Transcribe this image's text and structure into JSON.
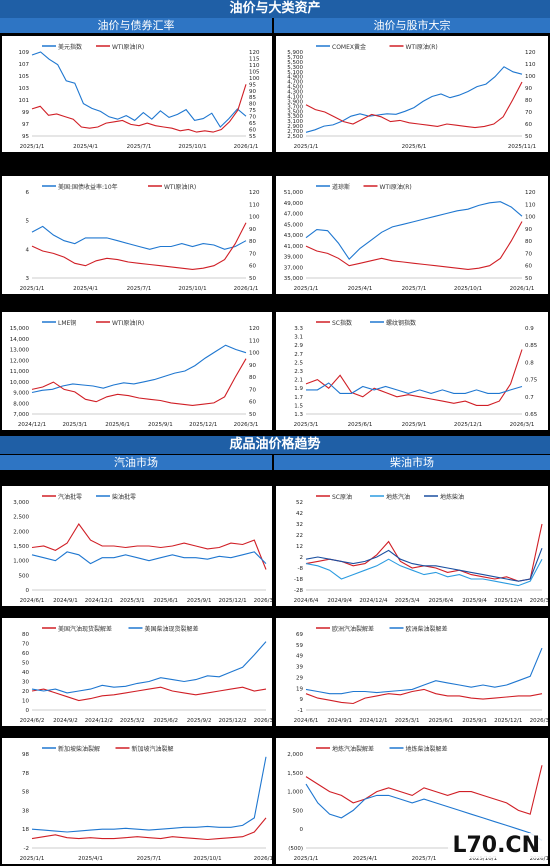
{
  "section1_title": "油价与大类资产",
  "section1_left": "油价与债券汇率",
  "section1_right": "油价与股市大宗",
  "section2_title": "成品油价格趋势",
  "section2_left": "汽油市场",
  "section2_right": "柴油市场",
  "watermark": "L70.CN",
  "chart_data": [
    {
      "id": "c1",
      "type": "line",
      "xticks": [
        "2025/1/1",
        "2025/4/1",
        "2025/7/1",
        "2025/10/1",
        "2026/1/1"
      ],
      "y_left": [
        95,
        97,
        99,
        101,
        103,
        105,
        107,
        109
      ],
      "y_right": [
        55,
        60,
        65,
        70,
        75,
        80,
        85,
        90,
        95,
        100,
        105,
        110,
        115,
        120
      ],
      "series": [
        {
          "name": "美元指数",
          "color": "#1f77d0",
          "axis": "left",
          "values": [
            108.5,
            109.2,
            107.8,
            106.9,
            104.2,
            103.8,
            100.4,
            99.6,
            99.1,
            98.2,
            97.8,
            98.4,
            97.6,
            98.9,
            97.8,
            99.2,
            98.1,
            98.6,
            99.4,
            97.6,
            97.9,
            98.8,
            96.5,
            97.9,
            99.5,
            98.3
          ]
        },
        {
          "name": "WTI原油(R)",
          "color": "#d01f26",
          "axis": "right",
          "values": [
            76,
            78,
            71,
            72,
            70,
            68,
            62,
            61,
            62,
            65,
            66,
            67,
            64,
            63,
            65,
            63,
            62,
            61,
            59,
            60,
            58,
            59,
            58,
            60,
            66,
            75,
            95
          ]
        }
      ]
    },
    {
      "id": "c2",
      "type": "line",
      "xticks": [
        "2025/1/1",
        "2025/6/1",
        "2025/11/1"
      ],
      "y_left": [
        2500,
        2700,
        2900,
        3100,
        3300,
        3500,
        3700,
        3900,
        4100,
        4300,
        4500,
        4700,
        4900,
        5100,
        5300,
        5500,
        5700,
        5900
      ],
      "y_right": [
        50,
        60,
        70,
        80,
        90,
        100,
        110,
        120
      ],
      "series": [
        {
          "name": "COMEX黄金",
          "color": "#1f77d0",
          "axis": "left",
          "values": [
            2650,
            2750,
            2900,
            2950,
            3100,
            3300,
            3400,
            3300,
            3350,
            3400,
            3380,
            3500,
            3650,
            3900,
            4100,
            4200,
            4050,
            4150,
            4300,
            4500,
            4600,
            4900,
            5300,
            5100,
            5000
          ]
        },
        {
          "name": "WTI原油(R)",
          "color": "#d01f26",
          "axis": "right",
          "values": [
            76,
            72,
            70,
            66,
            62,
            60,
            64,
            68,
            66,
            62,
            63,
            61,
            60,
            59,
            58,
            60,
            59,
            58,
            57,
            58,
            60,
            66,
            80,
            95
          ]
        }
      ]
    },
    {
      "id": "c3",
      "type": "line",
      "xticks": [
        "2025/1/1",
        "2025/4/1",
        "2025/7/1",
        "2025/10/1",
        "2026/1/1"
      ],
      "y_left": [
        3,
        4,
        5,
        6
      ],
      "y_right": [
        50,
        60,
        70,
        80,
        90,
        100,
        110,
        120
      ],
      "series": [
        {
          "name": "美国:国债收益率:10年",
          "color": "#1f77d0",
          "axis": "left",
          "values": [
            4.6,
            4.8,
            4.5,
            4.3,
            4.2,
            4.4,
            4.4,
            4.4,
            4.3,
            4.2,
            4.1,
            4.0,
            4.1,
            4.1,
            4.2,
            4.1,
            4.2,
            4.15,
            4.0,
            4.1,
            4.3
          ]
        },
        {
          "name": "WTI原油(R)",
          "color": "#d01f26",
          "axis": "right",
          "values": [
            76,
            72,
            70,
            67,
            62,
            60,
            64,
            66,
            65,
            63,
            62,
            61,
            60,
            59,
            58,
            57,
            58,
            60,
            65,
            78,
            95
          ]
        }
      ]
    },
    {
      "id": "c4",
      "type": "line",
      "xticks": [
        "2025/1/1",
        "2025/4/1",
        "2025/7/1",
        "2025/10/1",
        "2026/1/1"
      ],
      "y_left": [
        35000,
        37000,
        39000,
        41000,
        43000,
        45000,
        47000,
        49000,
        51000
      ],
      "y_right": [
        50,
        60,
        70,
        80,
        90,
        100,
        110,
        120
      ],
      "series": [
        {
          "name": "道琼斯",
          "color": "#1f77d0",
          "axis": "left",
          "values": [
            42500,
            44000,
            43800,
            41500,
            38500,
            40500,
            42000,
            43500,
            44500,
            45000,
            45500,
            46000,
            46500,
            47000,
            47500,
            47800,
            48500,
            49000,
            49200,
            48200,
            46500
          ]
        },
        {
          "name": "WTI原油(R)",
          "color": "#d01f26",
          "axis": "right",
          "values": [
            76,
            72,
            70,
            66,
            60,
            62,
            64,
            66,
            64,
            63,
            62,
            61,
            60,
            59,
            58,
            57,
            58,
            60,
            66,
            80,
            96
          ]
        }
      ]
    },
    {
      "id": "c5",
      "type": "line",
      "xticks": [
        "2024/12/1",
        "2025/3/1",
        "2025/6/1",
        "2025/9/1",
        "2025/12/1",
        "2026/3/1"
      ],
      "y_left": [
        7000,
        8000,
        9000,
        10000,
        11000,
        12000,
        13000,
        14000,
        15000
      ],
      "y_right": [
        50,
        60,
        70,
        80,
        90,
        100,
        110,
        120
      ],
      "series": [
        {
          "name": "LME铜",
          "color": "#1f77d0",
          "axis": "left",
          "values": [
            9000,
            9200,
            9300,
            9600,
            9800,
            9700,
            9600,
            9400,
            9700,
            9900,
            9800,
            10000,
            10200,
            10500,
            10800,
            11000,
            11500,
            12200,
            12800,
            13400,
            13000,
            12700
          ]
        },
        {
          "name": "WTI原油(R)",
          "color": "#d01f26",
          "axis": "right",
          "values": [
            70,
            72,
            76,
            70,
            68,
            62,
            60,
            64,
            66,
            65,
            63,
            62,
            61,
            59,
            58,
            57,
            58,
            59,
            64,
            80,
            95
          ]
        }
      ]
    },
    {
      "id": "c6",
      "type": "line",
      "xticks": [
        "2025/3/1",
        "2025/6/1",
        "2025/9/1",
        "2025/12/1",
        "2026/3/1"
      ],
      "y_left": [
        1.3,
        1.5,
        1.7,
        1.9,
        2.1,
        2.3,
        2.5,
        2.7,
        2.9,
        3.1,
        3.3
      ],
      "y_right": [
        0.65,
        0.7,
        0.75,
        0.8,
        0.85,
        0.9
      ],
      "series": [
        {
          "name": "SC指数",
          "color": "#d01f26",
          "axis": "left",
          "values": [
            2.0,
            2.1,
            1.9,
            2.2,
            1.8,
            1.7,
            1.9,
            1.8,
            1.7,
            1.75,
            1.7,
            1.65,
            1.6,
            1.55,
            1.6,
            1.5,
            1.5,
            1.6,
            2.0,
            2.8
          ]
        },
        {
          "name": "螺纹钢指数",
          "color": "#1f77d0",
          "axis": "right",
          "values": [
            0.72,
            0.72,
            0.74,
            0.71,
            0.71,
            0.73,
            0.72,
            0.73,
            0.72,
            0.71,
            0.72,
            0.71,
            0.72,
            0.71,
            0.71,
            0.72,
            0.71,
            0.71,
            0.72,
            0.73
          ]
        }
      ]
    },
    {
      "id": "c7",
      "type": "line",
      "xticks": [
        "2024/6/1",
        "2024/9/1",
        "2024/12/1",
        "2025/3/1",
        "2025/6/1",
        "2025/9/1",
        "2025/12/1",
        "2026/3/1"
      ],
      "y_left": [
        0,
        500,
        1000,
        1500,
        2000,
        2500,
        3000
      ],
      "series": [
        {
          "name": "汽油批零",
          "color": "#d01f26",
          "values": [
            1450,
            1500,
            1350,
            1600,
            2250,
            1700,
            1500,
            1500,
            1450,
            1500,
            1500,
            1450,
            1500,
            1600,
            1500,
            1400,
            1450,
            1600,
            1550,
            1700,
            700
          ]
        },
        {
          "name": "柴油批零",
          "color": "#1f77d0",
          "values": [
            1200,
            1100,
            1000,
            1300,
            1200,
            900,
            1100,
            1100,
            1200,
            1100,
            1000,
            1100,
            1200,
            1100,
            1100,
            1050,
            1150,
            1100,
            1200,
            1300,
            900
          ]
        }
      ]
    },
    {
      "id": "c8",
      "type": "line",
      "xticks": [
        "2024/6/4",
        "2024/9/4",
        "2024/12/4",
        "2025/3/4",
        "2025/6/4",
        "2025/9/4",
        "2025/12/4",
        "2026/3/4"
      ],
      "y_left": [
        -28,
        -18,
        -8,
        2,
        12,
        22,
        32,
        42,
        52
      ],
      "series": [
        {
          "name": "SC原油",
          "color": "#d01f26",
          "values": [
            -4,
            -2,
            0,
            -2,
            -6,
            -4,
            4,
            16,
            -2,
            -8,
            -6,
            -8,
            -12,
            -10,
            -14,
            -16,
            -18,
            -16,
            -20,
            -18,
            32
          ]
        },
        {
          "name": "地炼汽油",
          "color": "#2b9be0",
          "values": [
            -4,
            -6,
            -10,
            -18,
            -14,
            -10,
            -6,
            0,
            -6,
            -10,
            -14,
            -12,
            -16,
            -14,
            -18,
            -18,
            -20,
            -22,
            -24,
            -20,
            0
          ]
        },
        {
          "name": "地炼柴油",
          "color": "#1a4fa0",
          "values": [
            0,
            2,
            0,
            -2,
            -4,
            -2,
            2,
            8,
            0,
            -4,
            -6,
            -6,
            -8,
            -10,
            -12,
            -14,
            -16,
            -18,
            -20,
            -18,
            10
          ]
        }
      ]
    },
    {
      "id": "c9",
      "type": "line",
      "xticks": [
        "2024/6/2",
        "2024/9/2",
        "2024/12/2",
        "2025/3/2",
        "2025/6/2",
        "2025/9/2",
        "2025/12/2",
        "2026/3/2"
      ],
      "y_left": [
        0,
        10,
        20,
        30,
        40,
        50,
        60,
        70,
        80
      ],
      "series": [
        {
          "name": "美国汽油现货裂解差",
          "color": "#d01f26",
          "values": [
            20,
            22,
            18,
            14,
            10,
            12,
            15,
            16,
            18,
            20,
            22,
            24,
            20,
            18,
            16,
            18,
            20,
            22,
            24,
            20,
            22
          ]
        },
        {
          "name": "美国柴油现货裂解差",
          "color": "#1f77d0",
          "values": [
            22,
            20,
            22,
            18,
            20,
            22,
            26,
            24,
            25,
            28,
            30,
            34,
            32,
            30,
            32,
            36,
            35,
            40,
            45,
            58,
            72
          ]
        }
      ]
    },
    {
      "id": "c10",
      "type": "line",
      "xticks": [
        "2024/6/1",
        "2024/9/1",
        "2024/12/1",
        "2025/3/1",
        "2025/6/1",
        "2025/9/1",
        "2025/12/1",
        "2026/3/1"
      ],
      "y_left": [
        -1,
        9,
        19,
        29,
        39,
        49,
        59,
        69
      ],
      "series": [
        {
          "name": "欧洲汽油裂解差",
          "color": "#d01f26",
          "values": [
            14,
            10,
            8,
            6,
            5,
            10,
            12,
            14,
            13,
            16,
            18,
            14,
            12,
            12,
            10,
            9,
            10,
            11,
            12,
            12,
            14
          ]
        },
        {
          "name": "欧洲柴油裂解差",
          "color": "#1f77d0",
          "values": [
            18,
            16,
            14,
            14,
            16,
            16,
            15,
            16,
            17,
            18,
            22,
            26,
            24,
            22,
            20,
            22,
            20,
            22,
            26,
            30,
            56
          ]
        }
      ]
    },
    {
      "id": "c11",
      "type": "line",
      "xticks": [
        "2025/1/1",
        "2025/4/1",
        "2025/7/1",
        "2025/10/1",
        "2026/1/1"
      ],
      "y_left": [
        -2,
        18,
        38,
        58,
        78,
        98
      ],
      "series": [
        {
          "name": "新加坡柴油裂解",
          "color": "#1f77d0",
          "values": [
            18,
            17,
            16,
            15,
            16,
            17,
            18,
            18,
            19,
            18,
            17,
            18,
            19,
            20,
            20,
            21,
            20,
            20,
            22,
            30,
            95
          ]
        },
        {
          "name": "新加坡汽油裂解",
          "color": "#d01f26",
          "values": [
            8,
            10,
            12,
            9,
            8,
            9,
            8,
            8,
            9,
            10,
            9,
            8,
            10,
            9,
            8,
            7,
            8,
            9,
            10,
            15,
            30
          ]
        }
      ]
    },
    {
      "id": "c12",
      "type": "line",
      "xticks": [
        "2025/1/1",
        "2025/4/1",
        "2025/7/1",
        "2025/10/1",
        "2026/1/1"
      ],
      "y_left": [
        "(500)",
        "0",
        "500",
        "1,000",
        "1,500",
        "2,000"
      ],
      "series": [
        {
          "name": "地炼汽油裂解差",
          "color": "#d01f26",
          "values": [
            1400,
            1200,
            1000,
            900,
            700,
            800,
            1000,
            1100,
            1000,
            900,
            1100,
            1000,
            900,
            1000,
            1000,
            900,
            800,
            700,
            500,
            400,
            1700
          ]
        },
        {
          "name": "地炼柴油裂解差",
          "color": "#1f77d0",
          "values": [
            1200,
            700,
            400,
            300,
            500,
            800,
            900,
            900,
            800,
            700,
            800,
            700,
            600,
            500,
            400,
            300,
            200,
            100,
            0,
            -100,
            -300
          ]
        }
      ]
    }
  ]
}
